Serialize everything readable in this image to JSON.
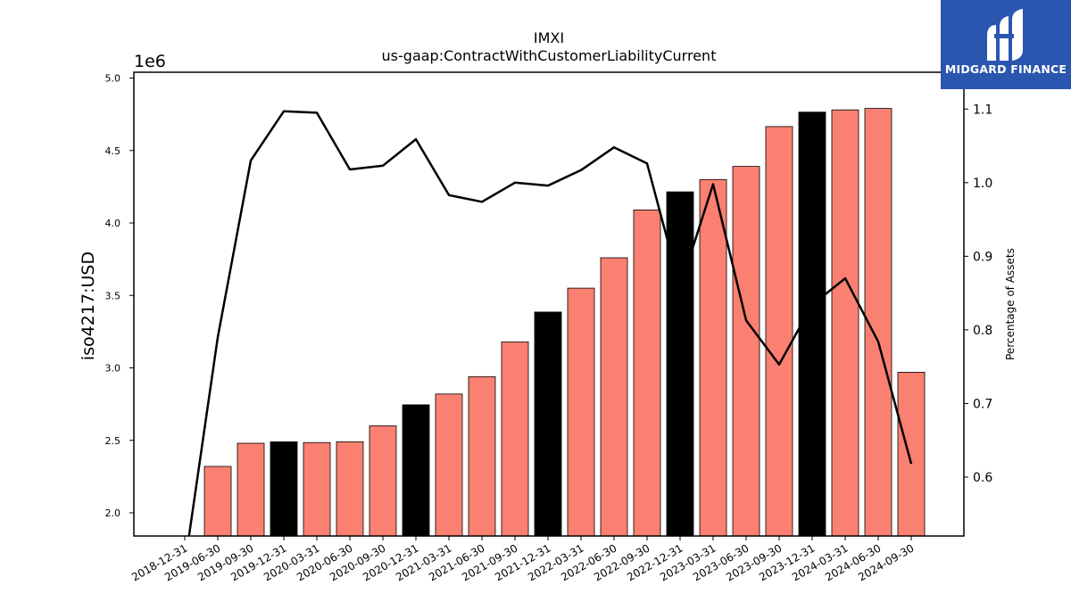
{
  "brand": {
    "name": "MIDGARD FINANCE",
    "color": "#2b56b0"
  },
  "chart_data": {
    "type": "bar",
    "title": "IMXI",
    "subtitle": "us-gaap:ContractWithCustomerLiabilityCurrent",
    "ylabel": "iso4217:USD",
    "y_offset_label": "1e6",
    "y2label": "Percentage of Assets",
    "ylim": [
      1.84,
      5.04
    ],
    "y2lim": [
      0.52,
      1.15
    ],
    "yticks": [
      2.0,
      2.5,
      3.0,
      3.5,
      4.0,
      4.5,
      5.0
    ],
    "y2ticks": [
      0.6,
      0.7,
      0.8,
      0.9,
      1.0,
      1.1
    ],
    "categories": [
      "2018-12-31",
      "2019-06-30",
      "2019-09-30",
      "2019-12-31",
      "2020-03-31",
      "2020-06-30",
      "2020-09-30",
      "2020-12-31",
      "2021-03-31",
      "2021-06-30",
      "2021-09-30",
      "2021-12-31",
      "2022-03-31",
      "2022-06-30",
      "2022-09-30",
      "2022-12-31",
      "2023-03-31",
      "2023-06-30",
      "2023-09-30",
      "2023-12-31",
      "2024-03-31",
      "2024-06-30",
      "2024-09-30"
    ],
    "bar_colors": {
      "quarter": "#fa8072",
      "year_end": "#000000"
    },
    "series": [
      {
        "type": "bar",
        "values": [
          null,
          2.32,
          2.48,
          2.49,
          2.485,
          2.49,
          2.6,
          2.745,
          2.82,
          2.94,
          3.18,
          3.385,
          3.55,
          3.76,
          4.09,
          4.215,
          4.3,
          4.39,
          4.665,
          4.765,
          4.78,
          4.79,
          2.97
        ],
        "year_end": [
          false,
          false,
          false,
          true,
          false,
          false,
          false,
          true,
          false,
          false,
          false,
          true,
          false,
          false,
          false,
          true,
          false,
          false,
          false,
          true,
          false,
          false,
          false
        ]
      },
      {
        "type": "line",
        "axis": "right",
        "color": "#000000",
        "values": [
          0.48,
          0.79,
          1.03,
          1.097,
          1.095,
          1.018,
          1.023,
          1.059,
          0.983,
          0.974,
          1.0,
          0.996,
          1.017,
          1.048,
          1.026,
          0.858,
          0.998,
          0.813,
          0.753,
          0.834,
          0.87,
          0.784,
          0.618
        ]
      }
    ]
  }
}
